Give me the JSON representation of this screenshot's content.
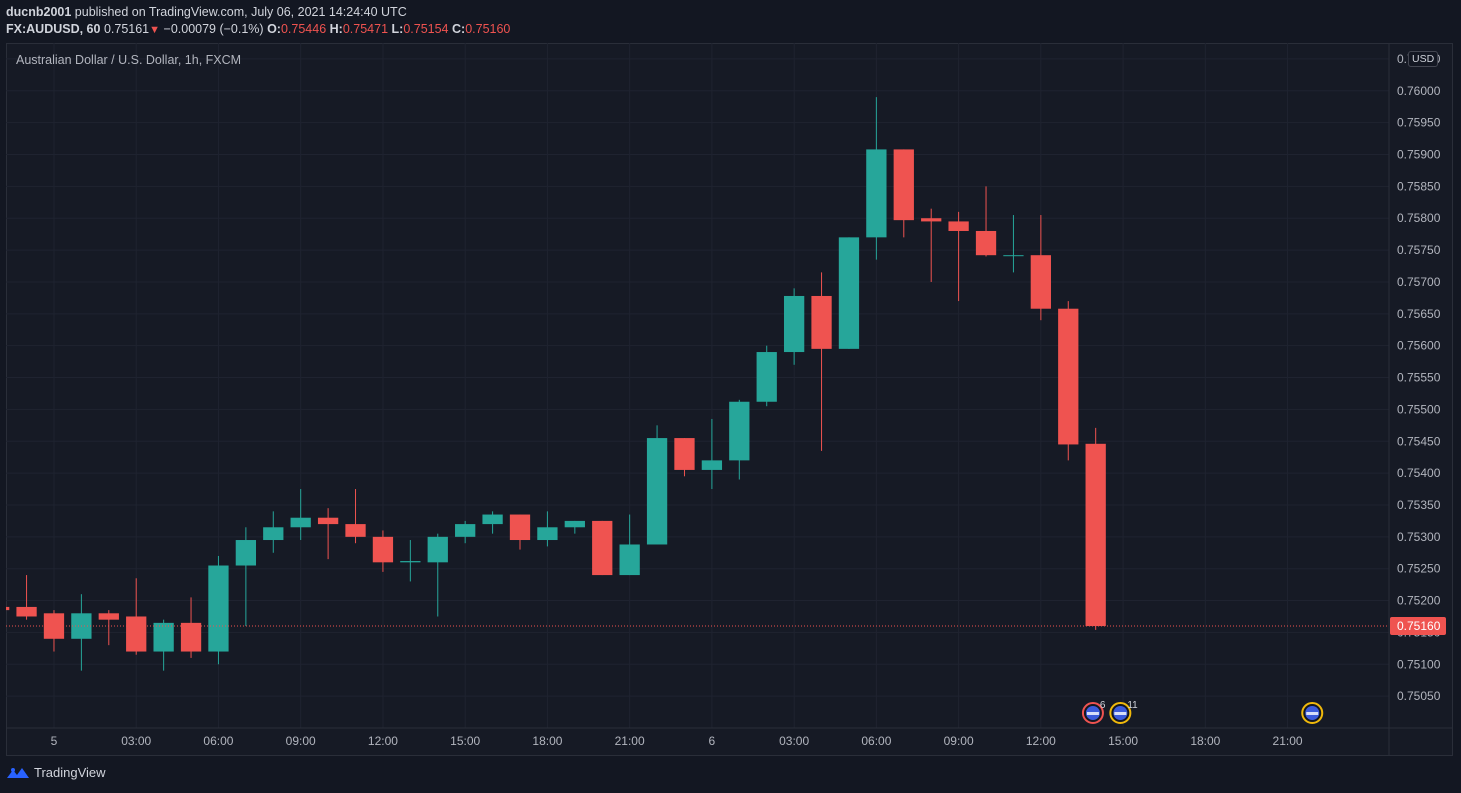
{
  "header": {
    "author": "ducnb2001",
    "published_text": "published on TradingView.com, July 06, 2021 14:24:40 UTC",
    "symbol": "FX:AUDUSD, 60",
    "last": "0.75161",
    "change": "−0.00079 (−0.1%)",
    "o_label": "O:",
    "o_value": "0.75446",
    "h_label": "H:",
    "h_value": "0.75471",
    "l_label": "L:",
    "l_value": "0.75154",
    "c_label": "C:",
    "c_value": "0.75160"
  },
  "instrument_title": "Australian Dollar / U.S. Dollar, 1h, FXCM",
  "currency_badge": "USD",
  "footer": {
    "brand": "TradingView"
  },
  "colors": {
    "up": "#26a69a",
    "down": "#ef5350",
    "bg": "#161a25",
    "grid": "#1f2330",
    "text": "#b2b5be"
  },
  "chart_data": {
    "type": "candlestick",
    "title": "Australian Dollar / U.S. Dollar, 1h, FXCM",
    "ylim": [
      0.75,
      0.76075
    ],
    "y_ticks": [
      "0.75050",
      "0.75100",
      "0.75150",
      "0.75200",
      "0.75250",
      "0.75300",
      "0.75350",
      "0.75400",
      "0.75450",
      "0.75500",
      "0.75550",
      "0.75600",
      "0.75650",
      "0.75700",
      "0.75750",
      "0.75800",
      "0.75850",
      "0.75900",
      "0.75950",
      "0.76000",
      "0.76050"
    ],
    "x_ticks": [
      {
        "label": "5",
        "hour": 0
      },
      {
        "label": "03:00",
        "hour": 3
      },
      {
        "label": "06:00",
        "hour": 6
      },
      {
        "label": "09:00",
        "hour": 9
      },
      {
        "label": "12:00",
        "hour": 12
      },
      {
        "label": "15:00",
        "hour": 15
      },
      {
        "label": "18:00",
        "hour": 18
      },
      {
        "label": "21:00",
        "hour": 21
      },
      {
        "label": "6",
        "hour": 24
      },
      {
        "label": "03:00",
        "hour": 27
      },
      {
        "label": "06:00",
        "hour": 30
      },
      {
        "label": "09:00",
        "hour": 33
      },
      {
        "label": "12:00",
        "hour": 36
      },
      {
        "label": "15:00",
        "hour": 39
      },
      {
        "label": "18:00",
        "hour": 42
      },
      {
        "label": "21:00",
        "hour": 45
      }
    ],
    "x_range_hours": [
      -1.75,
      48.7
    ],
    "candles": [
      {
        "h": -2,
        "o": 0.7519,
        "hi": 0.7524,
        "lo": 0.7518,
        "c": 0.75185
      },
      {
        "h": -1,
        "o": 0.7519,
        "hi": 0.7524,
        "lo": 0.7517,
        "c": 0.75175
      },
      {
        "h": 0,
        "o": 0.7518,
        "hi": 0.75185,
        "lo": 0.7512,
        "c": 0.7514
      },
      {
        "h": 1,
        "o": 0.7514,
        "hi": 0.7521,
        "lo": 0.7509,
        "c": 0.7518
      },
      {
        "h": 2,
        "o": 0.7518,
        "hi": 0.75185,
        "lo": 0.7513,
        "c": 0.7517
      },
      {
        "h": 3,
        "o": 0.75175,
        "hi": 0.75235,
        "lo": 0.75115,
        "c": 0.7512
      },
      {
        "h": 4,
        "o": 0.7512,
        "hi": 0.7517,
        "lo": 0.7509,
        "c": 0.75165
      },
      {
        "h": 5,
        "o": 0.75165,
        "hi": 0.75205,
        "lo": 0.7511,
        "c": 0.7512
      },
      {
        "h": 6,
        "o": 0.7512,
        "hi": 0.7527,
        "lo": 0.751,
        "c": 0.75255
      },
      {
        "h": 7,
        "o": 0.75255,
        "hi": 0.75315,
        "lo": 0.7516,
        "c": 0.75295
      },
      {
        "h": 8,
        "o": 0.75295,
        "hi": 0.7534,
        "lo": 0.75275,
        "c": 0.75315
      },
      {
        "h": 9,
        "o": 0.75315,
        "hi": 0.75375,
        "lo": 0.75295,
        "c": 0.7533
      },
      {
        "h": 10,
        "o": 0.7533,
        "hi": 0.75345,
        "lo": 0.75265,
        "c": 0.7532
      },
      {
        "h": 11,
        "o": 0.7532,
        "hi": 0.75375,
        "lo": 0.7529,
        "c": 0.753
      },
      {
        "h": 12,
        "o": 0.753,
        "hi": 0.7531,
        "lo": 0.75245,
        "c": 0.7526
      },
      {
        "h": 13,
        "o": 0.7526,
        "hi": 0.75295,
        "lo": 0.7523,
        "c": 0.75262
      },
      {
        "h": 14,
        "o": 0.7526,
        "hi": 0.75305,
        "lo": 0.75175,
        "c": 0.753
      },
      {
        "h": 15,
        "o": 0.753,
        "hi": 0.75325,
        "lo": 0.7529,
        "c": 0.7532
      },
      {
        "h": 16,
        "o": 0.7532,
        "hi": 0.7534,
        "lo": 0.75305,
        "c": 0.75335
      },
      {
        "h": 17,
        "o": 0.75335,
        "hi": 0.75335,
        "lo": 0.7528,
        "c": 0.75295
      },
      {
        "h": 18,
        "o": 0.75295,
        "hi": 0.7534,
        "lo": 0.75285,
        "c": 0.75315
      },
      {
        "h": 19,
        "o": 0.75315,
        "hi": 0.75325,
        "lo": 0.75305,
        "c": 0.75325
      },
      {
        "h": 20,
        "o": 0.75325,
        "hi": 0.75325,
        "lo": 0.7524,
        "c": 0.7524
      },
      {
        "h": 21,
        "o": 0.7524,
        "hi": 0.75335,
        "lo": 0.7524,
        "c": 0.75288
      },
      {
        "h": 22,
        "o": 0.75288,
        "hi": 0.75475,
        "lo": 0.75288,
        "c": 0.75455
      },
      {
        "h": 23,
        "o": 0.75455,
        "hi": 0.75455,
        "lo": 0.75395,
        "c": 0.75405
      },
      {
        "h": 24,
        "o": 0.75405,
        "hi": 0.75485,
        "lo": 0.75375,
        "c": 0.7542
      },
      {
        "h": 25,
        "o": 0.7542,
        "hi": 0.75515,
        "lo": 0.7539,
        "c": 0.75512
      },
      {
        "h": 26,
        "o": 0.75512,
        "hi": 0.756,
        "lo": 0.75505,
        "c": 0.7559
      },
      {
        "h": 27,
        "o": 0.7559,
        "hi": 0.7569,
        "lo": 0.7557,
        "c": 0.75678
      },
      {
        "h": 28,
        "o": 0.75678,
        "hi": 0.75715,
        "lo": 0.75435,
        "c": 0.75595
      },
      {
        "h": 29,
        "o": 0.75595,
        "hi": 0.7577,
        "lo": 0.75595,
        "c": 0.7577
      },
      {
        "h": 30,
        "o": 0.7577,
        "hi": 0.7599,
        "lo": 0.75735,
        "c": 0.75908
      },
      {
        "h": 31,
        "o": 0.75908,
        "hi": 0.75908,
        "lo": 0.7577,
        "c": 0.75797
      },
      {
        "h": 32,
        "o": 0.758,
        "hi": 0.75815,
        "lo": 0.757,
        "c": 0.75795
      },
      {
        "h": 33,
        "o": 0.75795,
        "hi": 0.7581,
        "lo": 0.7567,
        "c": 0.7578
      },
      {
        "h": 34,
        "o": 0.7578,
        "hi": 0.7585,
        "lo": 0.7574,
        "c": 0.75742
      },
      {
        "h": 35,
        "o": 0.75742,
        "hi": 0.75805,
        "lo": 0.75715,
        "c": 0.75742
      },
      {
        "h": 36,
        "o": 0.75742,
        "hi": 0.75805,
        "lo": 0.7564,
        "c": 0.75658
      },
      {
        "h": 37,
        "o": 0.75658,
        "hi": 0.7567,
        "lo": 0.7542,
        "c": 0.75445
      },
      {
        "h": 38,
        "o": 0.75446,
        "hi": 0.75471,
        "lo": 0.75154,
        "c": 0.7516
      }
    ],
    "last_price": 0.7516,
    "last_price_label": "0.75160",
    "events": [
      {
        "hour": 37.9,
        "label": "6",
        "ring": "#ef5350"
      },
      {
        "hour": 38.9,
        "label": "11",
        "ring": "#f0b90b"
      },
      {
        "hour": 45.9,
        "label": "",
        "ring": "#f0b90b"
      }
    ]
  }
}
